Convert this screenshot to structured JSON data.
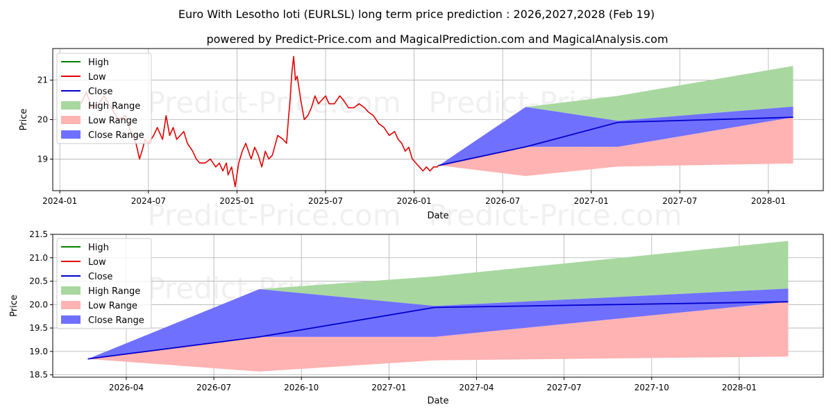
{
  "title": "Euro With Lesotho loti (EURLSL) long term price prediction : 2026,2027,2028 (Feb 19)",
  "subtitle": "powered by Predict-Price.com and MagicalPrediction.com and MagicalAnalysis.com",
  "watermark": "Predict-Price.com",
  "colors": {
    "high": "#008000",
    "low": "#e00000",
    "close": "#0000cc",
    "high_range": "#a8d8a0",
    "low_range": "#ffb3b3",
    "close_range": "#7070ff",
    "grid": "#b0b0b0"
  },
  "legend": [
    {
      "label": "High",
      "kind": "line",
      "color": "#008000"
    },
    {
      "label": "Low",
      "kind": "line",
      "color": "#e00000"
    },
    {
      "label": "Close",
      "kind": "line",
      "color": "#0000cc"
    },
    {
      "label": "High Range",
      "kind": "patch",
      "color": "#a8d8a0"
    },
    {
      "label": "Low Range",
      "kind": "patch",
      "color": "#ffb3b3"
    },
    {
      "label": "Close Range",
      "kind": "patch",
      "color": "#7070ff"
    }
  ],
  "chart_data": [
    {
      "type": "line",
      "name": "long-term",
      "xlabel": "Date",
      "ylabel": "Price",
      "xlim": [
        2023.96,
        2028.31
      ],
      "ylim": [
        18.2,
        21.8
      ],
      "grid": true,
      "legend_position": "top-left",
      "xticks": [
        {
          "v": 2024.0,
          "label": "2024-01"
        },
        {
          "v": 2024.5,
          "label": "2024-07"
        },
        {
          "v": 2025.0,
          "label": "2025-01"
        },
        {
          "v": 2025.5,
          "label": "2025-07"
        },
        {
          "v": 2026.0,
          "label": "2026-01"
        },
        {
          "v": 2026.5,
          "label": "2026-07"
        },
        {
          "v": 2027.0,
          "label": "2027-01"
        },
        {
          "v": 2027.5,
          "label": "2027-07"
        },
        {
          "v": 2028.0,
          "label": "2028-01"
        }
      ],
      "yticks": [
        {
          "v": 19,
          "label": "19"
        },
        {
          "v": 20,
          "label": "20"
        },
        {
          "v": 21,
          "label": "21"
        }
      ],
      "history_low": {
        "x": [
          2024.12,
          2024.15,
          2024.18,
          2024.22,
          2024.25,
          2024.29,
          2024.33,
          2024.37,
          2024.4,
          2024.43,
          2024.45,
          2024.47,
          2024.48,
          2024.5,
          2024.53,
          2024.55,
          2024.58,
          2024.6,
          2024.62,
          2024.64,
          2024.66,
          2024.7,
          2024.72,
          2024.75,
          2024.77,
          2024.79,
          2024.82,
          2024.85,
          2024.88,
          2024.9,
          2024.92,
          2024.94,
          2024.95,
          2024.97,
          2024.99,
          2025.01,
          2025.03,
          2025.05,
          2025.08,
          2025.1,
          2025.12,
          2025.14,
          2025.16,
          2025.18,
          2025.2,
          2025.23,
          2025.26,
          2025.28,
          2025.29,
          2025.3,
          2025.31,
          2025.32,
          2025.33,
          2025.34,
          2025.35,
          2025.36,
          2025.38,
          2025.4,
          2025.42,
          2025.44,
          2025.46,
          2025.48,
          2025.5,
          2025.52,
          2025.55,
          2025.58,
          2025.6,
          2025.63,
          2025.66,
          2025.69,
          2025.72,
          2025.74,
          2025.77,
          2025.8,
          2025.83,
          2025.86,
          2025.89,
          2025.91,
          2025.93,
          2025.95,
          2025.97,
          2025.99,
          2026.01,
          2026.03,
          2026.05,
          2026.07,
          2026.09,
          2026.11,
          2026.13,
          2026.14
        ],
        "y": [
          20.4,
          20.7,
          20.3,
          20.4,
          20.6,
          20.3,
          20.0,
          20.1,
          19.7,
          19.4,
          19.0,
          19.3,
          19.5,
          19.4,
          19.6,
          19.8,
          19.5,
          20.1,
          19.6,
          19.8,
          19.5,
          19.7,
          19.4,
          19.2,
          19.0,
          18.9,
          18.9,
          19.0,
          18.8,
          18.9,
          18.7,
          18.9,
          18.6,
          18.8,
          18.3,
          18.9,
          19.2,
          19.4,
          19.0,
          19.3,
          19.1,
          18.8,
          19.2,
          19.0,
          19.1,
          19.6,
          19.5,
          19.4,
          20.0,
          20.5,
          21.2,
          21.6,
          21.0,
          21.1,
          20.8,
          20.5,
          20.0,
          20.1,
          20.3,
          20.6,
          20.4,
          20.5,
          20.6,
          20.4,
          20.4,
          20.6,
          20.5,
          20.3,
          20.3,
          20.4,
          20.3,
          20.2,
          20.1,
          19.9,
          19.8,
          19.6,
          19.7,
          19.5,
          19.4,
          19.2,
          19.3,
          19.0,
          18.9,
          18.8,
          18.7,
          18.8,
          18.7,
          18.8,
          18.8,
          18.85
        ]
      },
      "forecast": {
        "x": [
          2026.14,
          2026.63,
          2027.15,
          2028.14
        ],
        "close": [
          18.84,
          19.31,
          19.93,
          20.06
        ],
        "close_range_high": [
          18.84,
          20.32,
          19.97,
          20.33
        ],
        "close_range_low": [
          18.84,
          19.31,
          19.31,
          20.06
        ],
        "high_range_high": [
          18.84,
          20.32,
          20.6,
          21.36
        ],
        "high_range_low": [
          18.84,
          20.32,
          19.97,
          20.33
        ],
        "low_range_high": [
          18.84,
          19.31,
          19.31,
          20.06
        ],
        "low_range_low": [
          18.84,
          18.57,
          18.81,
          18.89
        ]
      }
    },
    {
      "type": "line",
      "name": "forecast-zoom",
      "xlabel": "Date",
      "ylabel": "Price",
      "xlim": [
        2026.04,
        2028.24
      ],
      "ylim": [
        18.45,
        21.5
      ],
      "grid": true,
      "legend_position": "top-left",
      "xticks": [
        {
          "v": 2026.25,
          "label": "2026-04"
        },
        {
          "v": 2026.5,
          "label": "2026-07"
        },
        {
          "v": 2026.75,
          "label": "2026-10"
        },
        {
          "v": 2027.0,
          "label": "2027-01"
        },
        {
          "v": 2027.25,
          "label": "2027-04"
        },
        {
          "v": 2027.5,
          "label": "2027-07"
        },
        {
          "v": 2027.75,
          "label": "2027-10"
        },
        {
          "v": 2028.0,
          "label": "2028-01"
        }
      ],
      "yticks": [
        {
          "v": 18.5,
          "label": "18.5"
        },
        {
          "v": 19.0,
          "label": "19.0"
        },
        {
          "v": 19.5,
          "label": "19.5"
        },
        {
          "v": 20.0,
          "label": "20.0"
        },
        {
          "v": 20.5,
          "label": "20.5"
        },
        {
          "v": 21.0,
          "label": "21.0"
        },
        {
          "v": 21.5,
          "label": "21.5"
        }
      ],
      "forecast": {
        "x": [
          2026.14,
          2026.63,
          2027.13,
          2028.14
        ],
        "close": [
          18.84,
          19.31,
          19.94,
          20.06
        ],
        "close_range_high": [
          18.84,
          20.33,
          19.97,
          20.34
        ],
        "close_range_low": [
          18.84,
          19.31,
          19.31,
          20.06
        ],
        "high_range_high": [
          18.84,
          20.33,
          20.6,
          21.36
        ],
        "high_range_low": [
          18.84,
          20.33,
          19.97,
          20.34
        ],
        "low_range_high": [
          18.84,
          19.31,
          19.31,
          20.06
        ],
        "low_range_low": [
          18.84,
          18.57,
          18.81,
          18.89
        ]
      }
    }
  ]
}
